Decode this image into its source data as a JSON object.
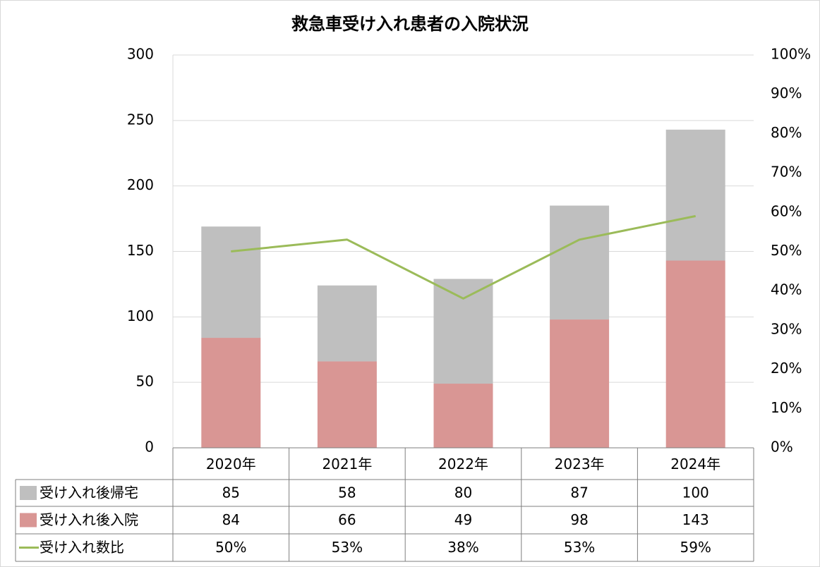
{
  "chart_data": {
    "type": "bar",
    "stacked": true,
    "title": "救急車受け入れ患者の入院状況",
    "categories": [
      "2020年",
      "2021年",
      "2022年",
      "2023年",
      "2024年"
    ],
    "series": [
      {
        "name": "受け入れ後帰宅",
        "color": "#bfbfbf",
        "values": [
          85,
          58,
          80,
          87,
          100
        ]
      },
      {
        "name": "受け入れ後入院",
        "color": "#d99694",
        "values": [
          84,
          66,
          49,
          98,
          143
        ]
      },
      {
        "name": "受け入れ数比",
        "color": "#9bbb59",
        "type": "line",
        "axis": "y2",
        "values": [
          50,
          53,
          38,
          53,
          59
        ],
        "value_labels": [
          "50%",
          "53%",
          "38%",
          "53%",
          "59%"
        ]
      }
    ],
    "ylim": [
      0,
      300
    ],
    "yticks": [
      0,
      50,
      100,
      150,
      200,
      250,
      300
    ],
    "y2lim": [
      0,
      100
    ],
    "y2ticks": [
      {
        "value": 0,
        "label": "0%"
      },
      {
        "value": 10,
        "label": "10%"
      },
      {
        "value": 20,
        "label": "20%"
      },
      {
        "value": 30,
        "label": "30%"
      },
      {
        "value": 40,
        "label": "40%"
      },
      {
        "value": 50,
        "label": "50%"
      },
      {
        "value": 60,
        "label": "60%"
      },
      {
        "value": 70,
        "label": "70%"
      },
      {
        "value": 80,
        "label": "80%"
      },
      {
        "value": 90,
        "label": "90%"
      },
      {
        "value": 100,
        "label": "100%"
      }
    ],
    "grid": true,
    "data_table": true
  }
}
